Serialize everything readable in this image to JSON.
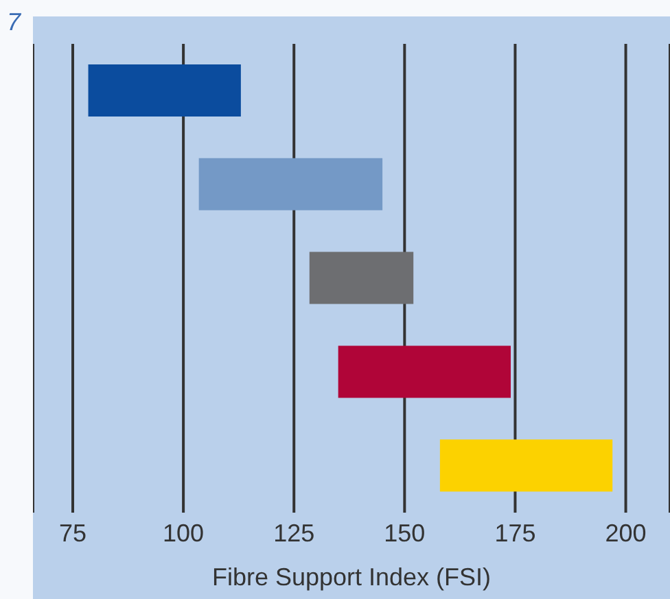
{
  "chart_data": {
    "type": "bar",
    "orientation": "horizontal",
    "annotations": [
      "7"
    ],
    "xlabel": "Fibre Support Index (FSI)",
    "categories": [
      null,
      null,
      null,
      null,
      null
    ],
    "base": [
      78.5,
      103.5,
      128.5,
      135,
      158
    ],
    "values": [
      34.5,
      41.5,
      23.5,
      39,
      39
    ],
    "colors": [
      "#0b4c9e",
      "#7499c6",
      "#6d6e71",
      "#b00538",
      "#fcd200"
    ],
    "xlim": [
      66,
      210
    ],
    "xticks": [
      75,
      100,
      125,
      150,
      175,
      200
    ],
    "grid": "x",
    "legend": false
  }
}
